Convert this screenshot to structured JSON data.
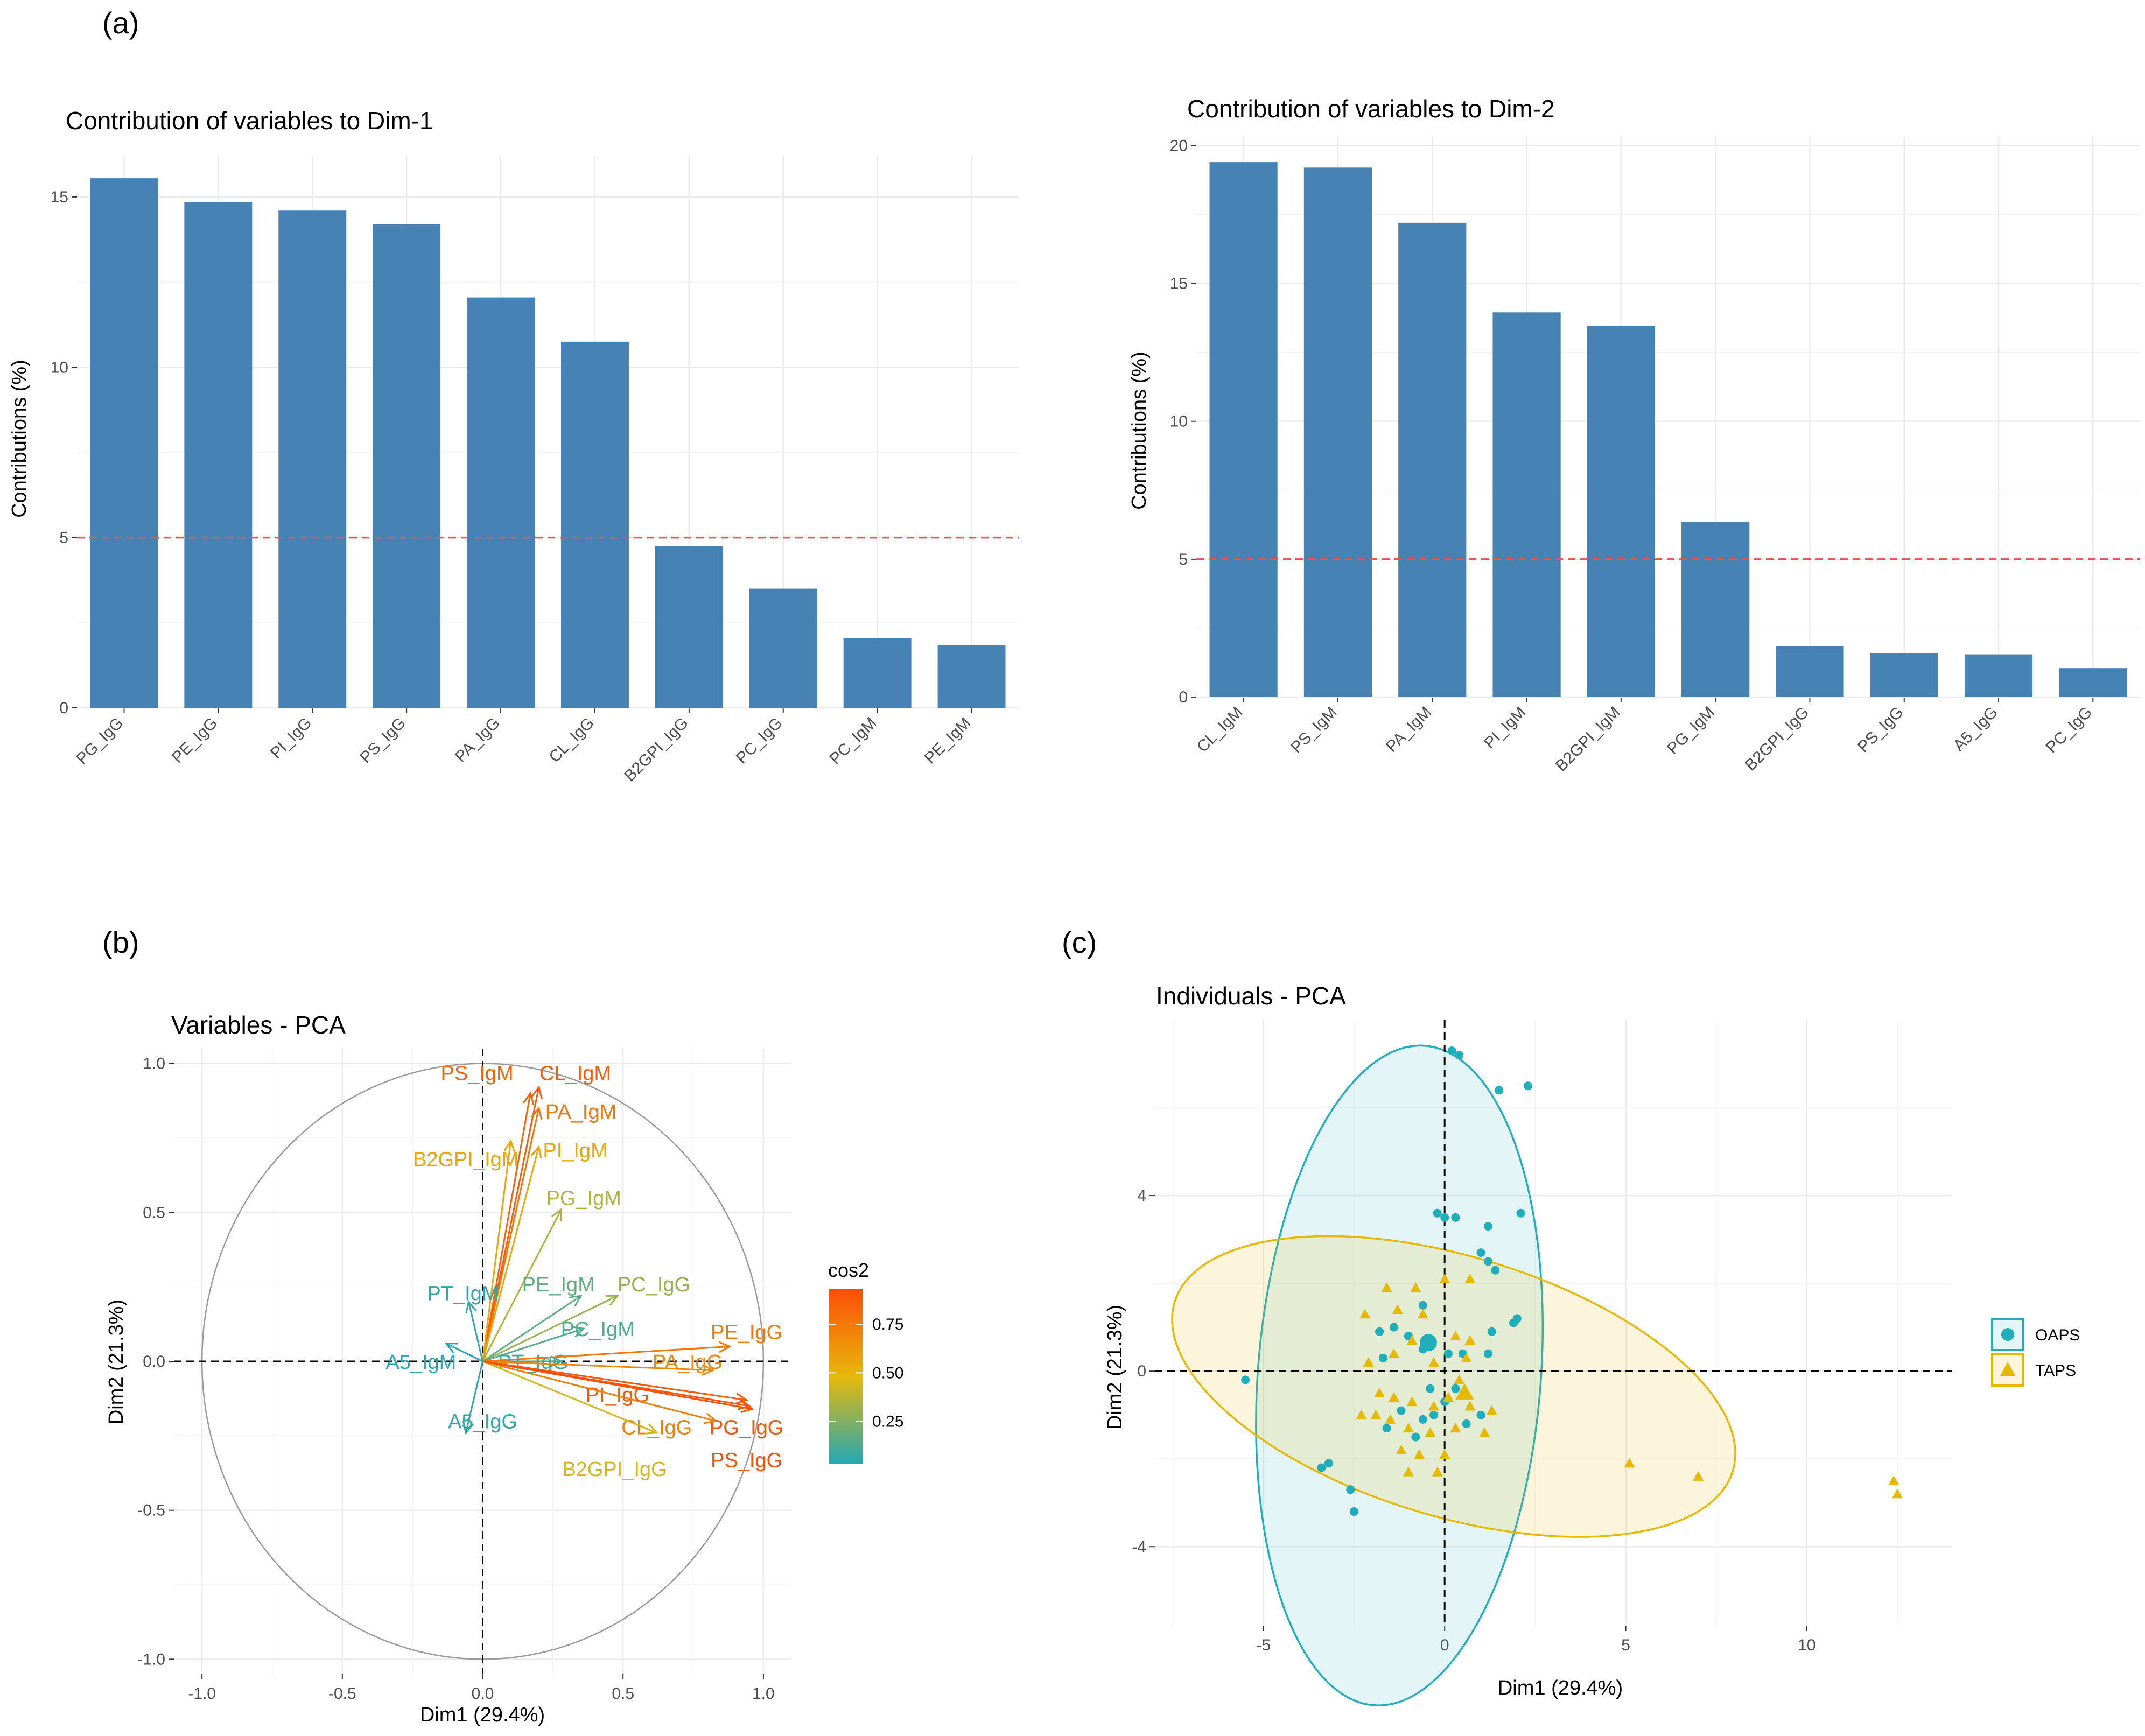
{
  "panel_labels": {
    "a": "(a)",
    "b": "(b)",
    "c": "(c)"
  },
  "chart_data": [
    {
      "id": "dim1",
      "type": "bar",
      "title": "Contribution of variables to Dim-1",
      "ylabel": "Contributions (%)",
      "xlabel": "",
      "categories": [
        "PG_IgG",
        "PE_IgG",
        "PI_IgG",
        "PS_IgG",
        "PA_IgG",
        "CL_IgG",
        "B2GPI_IgG",
        "PC_IgG",
        "PC_IgM",
        "PE_IgM"
      ],
      "values": [
        15.55,
        14.85,
        14.6,
        14.2,
        12.05,
        10.75,
        4.75,
        3.5,
        2.05,
        1.85
      ],
      "ylim": [
        0,
        16.2
      ],
      "yticks": [
        0,
        5,
        10,
        15
      ],
      "ytick_labels": [
        "0",
        "5",
        "10",
        "15"
      ],
      "reference_line": 5,
      "bar_color": "#4682b4",
      "ref_color": "#e8534b"
    },
    {
      "id": "dim2",
      "type": "bar",
      "title": "Contribution of variables to Dim-2",
      "ylabel": "Contributions (%)",
      "xlabel": "",
      "categories": [
        "CL_IgM",
        "PS_IgM",
        "PA_IgM",
        "PI_IgM",
        "B2GPI_IgM",
        "PG_IgM",
        "B2GPI_IgG",
        "PS_IgG",
        "A5_IgG",
        "PC_IgG"
      ],
      "values": [
        19.4,
        19.2,
        17.2,
        13.95,
        13.45,
        6.35,
        1.85,
        1.6,
        1.55,
        1.05
      ],
      "ylim": [
        0,
        20.3
      ],
      "yticks": [
        0,
        5,
        10,
        15,
        20
      ],
      "ytick_labels": [
        "0",
        "5",
        "10",
        "15",
        "20"
      ],
      "reference_line": 5,
      "bar_color": "#4682b4",
      "ref_color": "#e8534b"
    },
    {
      "id": "variables",
      "type": "scatter",
      "subtype": "pca-variable-arrows",
      "title": "Variables - PCA",
      "xlabel": "Dim1 (29.4%)",
      "ylabel": "Dim2 (21.3%)",
      "xlim": [
        -1.1,
        1.1
      ],
      "ylim": [
        -1.05,
        1.05
      ],
      "xticks": [
        -1.0,
        -0.5,
        0.0,
        0.5,
        1.0
      ],
      "xtick_labels": [
        "-1.0",
        "-0.5",
        "0.0",
        "0.5",
        "1.0"
      ],
      "yticks": [
        -1.0,
        -0.5,
        0.0,
        0.5,
        1.0
      ],
      "ytick_labels": [
        "-1.0",
        "-0.5",
        "0.0",
        "0.5",
        "1.0"
      ],
      "legend": {
        "title": "cos2",
        "ticks": [
          0.25,
          0.5,
          0.75
        ],
        "tick_labels": [
          "0.25",
          "0.50",
          "0.75"
        ],
        "range": [
          0.03,
          0.93
        ],
        "colors": [
          "#22a7b5",
          "#e7b80c",
          "#fc4e07"
        ],
        "position": "right"
      },
      "variables": [
        {
          "name": "PS_IgM",
          "x": 0.17,
          "y": 0.9,
          "cos2": 0.84,
          "lx": -0.02,
          "ly": 0.97
        },
        {
          "name": "CL_IgM",
          "x": 0.2,
          "y": 0.92,
          "cos2": 0.88,
          "lx": 0.33,
          "ly": 0.97
        },
        {
          "name": "PA_IgM",
          "x": 0.2,
          "y": 0.85,
          "cos2": 0.77,
          "lx": 0.35,
          "ly": 0.84
        },
        {
          "name": "B2GPI_IgM",
          "x": 0.1,
          "y": 0.74,
          "cos2": 0.56,
          "lx": -0.06,
          "ly": 0.68
        },
        {
          "name": "PI_IgM",
          "x": 0.2,
          "y": 0.72,
          "cos2": 0.56,
          "lx": 0.33,
          "ly": 0.71
        },
        {
          "name": "PG_IgM",
          "x": 0.28,
          "y": 0.51,
          "cos2": 0.35,
          "lx": 0.36,
          "ly": 0.55
        },
        {
          "name": "PT_IgM",
          "x": -0.05,
          "y": 0.2,
          "cos2": 0.05,
          "lx": -0.07,
          "ly": 0.23
        },
        {
          "name": "PE_IgM",
          "x": 0.35,
          "y": 0.22,
          "cos2": 0.17,
          "lx": 0.27,
          "ly": 0.26
        },
        {
          "name": "PC_IgG",
          "x": 0.48,
          "y": 0.22,
          "cos2": 0.3,
          "lx": 0.61,
          "ly": 0.26
        },
        {
          "name": "PC_IgM",
          "x": 0.36,
          "y": 0.11,
          "cos2": 0.14,
          "lx": 0.41,
          "ly": 0.11
        },
        {
          "name": "A5_IgM",
          "x": -0.13,
          "y": 0.06,
          "cos2": 0.04,
          "lx": -0.22,
          "ly": -0.0
        },
        {
          "name": "PT_IgG",
          "x": 0.28,
          "y": 0.0,
          "cos2": 0.09,
          "lx": 0.18,
          "ly": -0.0
        },
        {
          "name": "A5_IgG",
          "x": -0.06,
          "y": -0.24,
          "cos2": 0.06,
          "lx": 0.0,
          "ly": -0.2
        },
        {
          "name": "PE_IgG",
          "x": 0.88,
          "y": 0.05,
          "cos2": 0.76,
          "lx": 0.94,
          "ly": 0.1
        },
        {
          "name": "PA_IgG",
          "x": 0.82,
          "y": -0.03,
          "cos2": 0.69,
          "lx": 0.73,
          "ly": -0.0
        },
        {
          "name": "PI_IgG",
          "x": 0.94,
          "y": -0.13,
          "cos2": 0.88,
          "lx": 0.48,
          "ly": -0.11
        },
        {
          "name": "PG_IgG",
          "x": 0.95,
          "y": -0.15,
          "cos2": 0.91,
          "lx": 0.94,
          "ly": -0.22
        },
        {
          "name": "CL_IgG",
          "x": 0.83,
          "y": -0.2,
          "cos2": 0.73,
          "lx": 0.62,
          "ly": -0.22
        },
        {
          "name": "B2GPI_IgG",
          "x": 0.62,
          "y": -0.24,
          "cos2": 0.44,
          "lx": 0.47,
          "ly": -0.36
        },
        {
          "name": "PS_IgG",
          "x": 0.96,
          "y": -0.16,
          "cos2": 0.93,
          "lx": 0.94,
          "ly": -0.33
        }
      ]
    },
    {
      "id": "individuals",
      "type": "scatter",
      "title": "Individuals - PCA",
      "xlabel": "Dim1 (29.4%)",
      "ylabel": "Dim2 (21.3%)",
      "xlim": [
        -8,
        14
      ],
      "ylim": [
        -5.8,
        8
      ],
      "xticks": [
        -5,
        0,
        5,
        10
      ],
      "xtick_labels": [
        "-5",
        "0",
        "5",
        "10"
      ],
      "yticks": [
        -4,
        0,
        4
      ],
      "ytick_labels": [
        "-4",
        "0",
        "4"
      ],
      "legend_position": "right",
      "series": [
        {
          "name": "OAPS",
          "shape": "circle",
          "color": "#20aebb",
          "fill": "rgba(32,174,187,0.12)",
          "mean": [
            -0.45,
            0.65
          ],
          "ellipse": {
            "center": [
              -1.25,
              -0.1
            ],
            "semi_major": 7.55,
            "semi_minor": 3.9,
            "angle_deg": 84
          },
          "points": [
            [
              0.2,
              7.3
            ],
            [
              0.4,
              7.2
            ],
            [
              1.5,
              6.4
            ],
            [
              2.3,
              6.5
            ],
            [
              -0.2,
              3.6
            ],
            [
              0.0,
              3.5
            ],
            [
              0.3,
              3.5
            ],
            [
              1.2,
              3.3
            ],
            [
              2.1,
              3.6
            ],
            [
              1.0,
              2.7
            ],
            [
              1.2,
              2.5
            ],
            [
              1.4,
              2.3
            ],
            [
              2.0,
              1.2
            ],
            [
              1.9,
              1.1
            ],
            [
              -0.6,
              1.5
            ],
            [
              -1.4,
              1.0
            ],
            [
              -1.8,
              0.9
            ],
            [
              -1.0,
              0.8
            ],
            [
              -0.6,
              0.5
            ],
            [
              0.1,
              0.4
            ],
            [
              0.5,
              0.4
            ],
            [
              1.3,
              0.9
            ],
            [
              1.2,
              0.4
            ],
            [
              -1.7,
              0.3
            ],
            [
              -0.4,
              -0.4
            ],
            [
              0.3,
              -0.4
            ],
            [
              0.0,
              -0.7
            ],
            [
              -0.3,
              -1.0
            ],
            [
              -0.6,
              -1.1
            ],
            [
              -1.2,
              -0.9
            ],
            [
              -1.6,
              -1.3
            ],
            [
              0.6,
              -1.2
            ],
            [
              1.0,
              -1.0
            ],
            [
              -0.8,
              -1.5
            ],
            [
              -5.5,
              -0.2
            ],
            [
              -3.2,
              -2.1
            ],
            [
              -3.4,
              -2.2
            ],
            [
              -2.6,
              -2.7
            ],
            [
              -2.5,
              -3.2
            ]
          ]
        },
        {
          "name": "TAPS",
          "shape": "triangle",
          "color": "#e7b800",
          "fill": "rgba(231,184,0,0.14)",
          "mean": [
            0.55,
            -0.5
          ],
          "ellipse": {
            "center": [
              0.25,
              -0.35
            ],
            "semi_major": 7.95,
            "semi_minor": 3.0,
            "angle_deg": -13
          },
          "points": [
            [
              -1.6,
              1.9
            ],
            [
              -0.8,
              1.9
            ],
            [
              0.0,
              2.1
            ],
            [
              0.7,
              2.1
            ],
            [
              -2.2,
              1.3
            ],
            [
              -1.3,
              1.4
            ],
            [
              -0.6,
              1.3
            ],
            [
              -0.9,
              0.7
            ],
            [
              0.3,
              0.8
            ],
            [
              0.7,
              0.7
            ],
            [
              -2.1,
              0.2
            ],
            [
              -1.4,
              0.4
            ],
            [
              -0.3,
              0.2
            ],
            [
              0.6,
              0.3
            ],
            [
              0.4,
              -0.2
            ],
            [
              -1.8,
              -0.5
            ],
            [
              -1.4,
              -0.6
            ],
            [
              -0.9,
              -0.7
            ],
            [
              -0.3,
              -0.8
            ],
            [
              0.1,
              -0.6
            ],
            [
              0.7,
              -0.8
            ],
            [
              1.3,
              -0.9
            ],
            [
              -2.3,
              -1.0
            ],
            [
              -1.9,
              -1.0
            ],
            [
              -1.5,
              -1.1
            ],
            [
              -1.0,
              -1.3
            ],
            [
              -0.4,
              -1.4
            ],
            [
              0.3,
              -1.3
            ],
            [
              1.1,
              -1.4
            ],
            [
              -1.2,
              -1.8
            ],
            [
              -0.7,
              -1.9
            ],
            [
              0.0,
              -1.9
            ],
            [
              -0.2,
              -2.3
            ],
            [
              -1.0,
              -2.3
            ],
            [
              5.1,
              -2.1
            ],
            [
              7.0,
              -2.4
            ],
            [
              12.4,
              -2.5
            ],
            [
              12.5,
              -2.8
            ]
          ]
        }
      ]
    }
  ]
}
